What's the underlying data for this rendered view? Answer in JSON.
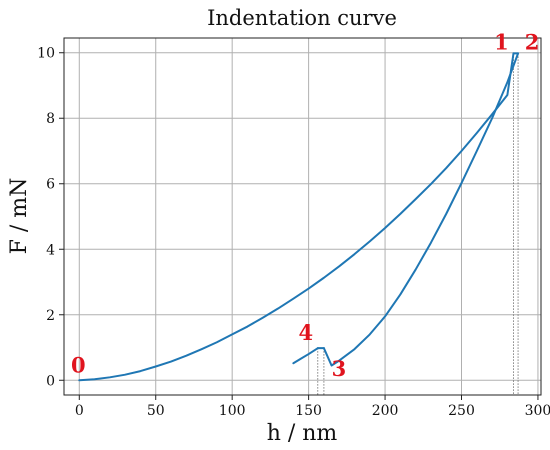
{
  "chart_data": {
    "type": "line",
    "title": "Indentation curve",
    "xlabel": "h / nm",
    "ylabel": "F / mN",
    "xlim": [
      -10,
      302
    ],
    "ylim": [
      -0.45,
      10.45
    ],
    "xticks": [
      0,
      50,
      100,
      150,
      200,
      250,
      300
    ],
    "yticks": [
      0,
      2,
      4,
      6,
      8,
      10
    ],
    "xtick_labels": [
      "0",
      "50",
      "100",
      "150",
      "200",
      "250",
      "300"
    ],
    "ytick_labels": [
      "0",
      "2",
      "4",
      "6",
      "8",
      "10"
    ],
    "grid": true,
    "series_color": "#1f77b4",
    "label_color": "#e0141e",
    "series": [
      {
        "segment": "loading",
        "x": [
          0,
          10,
          20,
          30,
          40,
          50,
          60,
          70,
          80,
          90,
          100,
          110,
          120,
          130,
          140,
          150,
          160,
          170,
          180,
          190,
          200,
          210,
          220,
          230,
          240,
          250,
          260,
          270,
          280,
          284
        ],
        "y": [
          0,
          0.03,
          0.09,
          0.17,
          0.28,
          0.42,
          0.57,
          0.75,
          0.95,
          1.16,
          1.4,
          1.64,
          1.91,
          2.19,
          2.49,
          2.8,
          3.13,
          3.48,
          3.85,
          4.24,
          4.65,
          5.08,
          5.53,
          5.99,
          6.48,
          7.0,
          7.55,
          8.12,
          8.71,
          9.98
        ]
      },
      {
        "segment": "hold-max",
        "x": [
          284,
          287
        ],
        "y": [
          9.98,
          9.98
        ]
      },
      {
        "segment": "unloading",
        "x": [
          287,
          280,
          270,
          260,
          250,
          240,
          230,
          220,
          210,
          200,
          190,
          180,
          170,
          165,
          160
        ],
        "y": [
          9.98,
          9.1,
          8.0,
          7.0,
          6.02,
          5.08,
          4.2,
          3.38,
          2.62,
          1.95,
          1.4,
          0.95,
          0.6,
          0.45,
          0.98
        ]
      },
      {
        "segment": "hold-min",
        "x": [
          160,
          156
        ],
        "y": [
          0.98,
          0.98
        ]
      },
      {
        "segment": "tail",
        "x": [
          156,
          150,
          145,
          140
        ],
        "y": [
          0.98,
          0.8,
          0.66,
          0.52
        ]
      }
    ],
    "annotations": [
      {
        "label": "0",
        "x": 0,
        "y": 0,
        "line": false
      },
      {
        "label": "1",
        "x": 284,
        "y": 9.98,
        "line": true
      },
      {
        "label": "2",
        "x": 287,
        "y": 9.98,
        "line": true
      },
      {
        "label": "3",
        "x": 160,
        "y": 0.98,
        "line": true
      },
      {
        "label": "4",
        "x": 156,
        "y": 0.98,
        "line": true
      }
    ]
  }
}
